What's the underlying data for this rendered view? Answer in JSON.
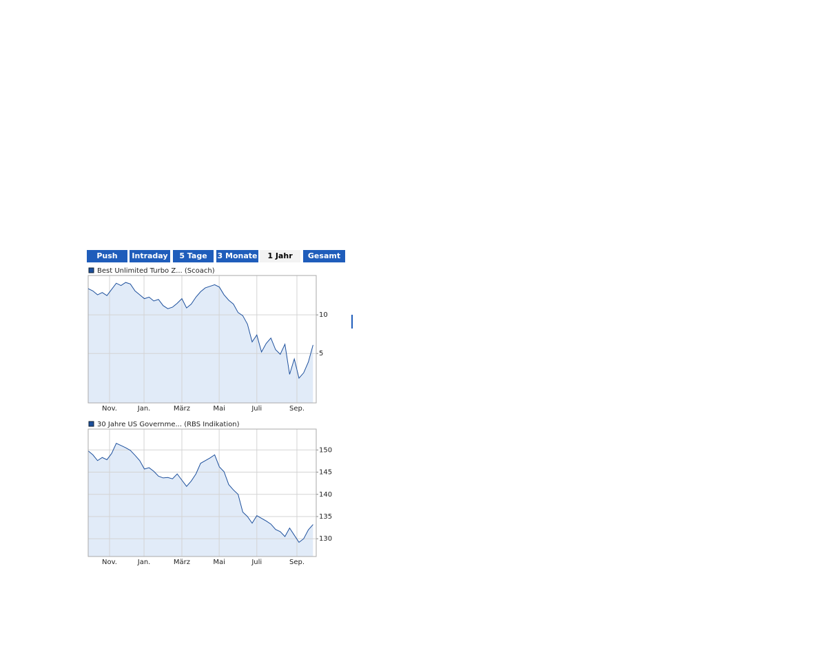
{
  "tabs": [
    "Push",
    "Intraday",
    "5 Tage",
    "3 Monate",
    "1 Jahr",
    "Gesamt"
  ],
  "chart_data": [
    {
      "type": "line",
      "series": [
        {
          "name": "Best Unlimited Turbo Z... (Scoach)",
          "color": "#1c4f9c",
          "fill": "#e1ebf8",
          "values": [
            13.4,
            13.1,
            12.6,
            12.9,
            12.5,
            13.3,
            14.1,
            13.8,
            14.2,
            14.0,
            13.1,
            12.6,
            12.1,
            12.3,
            11.8,
            12.0,
            11.2,
            10.8,
            11.0,
            11.5,
            12.1,
            10.9,
            11.4,
            12.3,
            13.0,
            13.5,
            13.7,
            13.9,
            13.6,
            12.6,
            11.9,
            11.4,
            10.3,
            9.9,
            8.8,
            6.5,
            7.4,
            5.2,
            6.3,
            7.0,
            5.5,
            4.9,
            6.2,
            2.3,
            4.3,
            1.8,
            2.5,
            3.9,
            6.1
          ]
        }
      ],
      "x": [
        0,
        0.25,
        0.5,
        0.75,
        1,
        1.25,
        1.5,
        1.75,
        2,
        2.25,
        2.5,
        2.75,
        3,
        3.25,
        3.5,
        3.75,
        4,
        4.25,
        4.5,
        4.75,
        5,
        5.25,
        5.5,
        5.75,
        6,
        6.25,
        6.5,
        6.75,
        7,
        7.25,
        7.5,
        7.75,
        8,
        8.25,
        8.5,
        8.75,
        9,
        9.25,
        9.5,
        9.75,
        10,
        10.25,
        10.5,
        10.75,
        11,
        11.25,
        11.5,
        11.75,
        12
      ],
      "xlim": [
        0,
        12.17
      ],
      "xticks": [
        {
          "value": 1.14,
          "label": "Nov."
        },
        {
          "value": 2.98,
          "label": "Jan."
        },
        {
          "value": 5.0,
          "label": "März"
        },
        {
          "value": 6.99,
          "label": "Mai"
        },
        {
          "value": 9.0,
          "label": "Juli"
        },
        {
          "value": 11.14,
          "label": "Sep."
        }
      ],
      "ylim": [
        -1.4,
        15.1
      ],
      "yticks": [
        5,
        10
      ],
      "grid": true
    },
    {
      "type": "line",
      "series": [
        {
          "name": "30 Jahre US Governme... (RBS Indikation)",
          "color": "#1c4f9c",
          "fill": "#e1ebf8",
          "values": [
            149.8,
            148.9,
            147.6,
            148.3,
            147.8,
            149.2,
            151.5,
            151.0,
            150.5,
            149.9,
            148.8,
            147.6,
            145.7,
            146.0,
            145.2,
            144.1,
            143.7,
            143.8,
            143.5,
            144.6,
            143.2,
            141.8,
            143.0,
            144.6,
            147.0,
            147.6,
            148.2,
            148.9,
            146.2,
            145.1,
            142.2,
            141.0,
            140.0,
            136.0,
            135.0,
            133.5,
            135.2,
            134.6,
            134.0,
            133.3,
            132.1,
            131.6,
            130.5,
            132.4,
            130.8,
            129.2,
            130.0,
            132.0,
            133.2
          ]
        }
      ],
      "x": [
        0,
        0.25,
        0.5,
        0.75,
        1,
        1.25,
        1.5,
        1.75,
        2,
        2.25,
        2.5,
        2.75,
        3,
        3.25,
        3.5,
        3.75,
        4,
        4.25,
        4.5,
        4.75,
        5,
        5.25,
        5.5,
        5.75,
        6,
        6.25,
        6.5,
        6.75,
        7,
        7.25,
        7.5,
        7.75,
        8,
        8.25,
        8.5,
        8.75,
        9,
        9.25,
        9.5,
        9.75,
        10,
        10.25,
        10.5,
        10.75,
        11,
        11.25,
        11.5,
        11.75,
        12
      ],
      "xlim": [
        0,
        12.17
      ],
      "xticks": [
        {
          "value": 1.14,
          "label": "Nov."
        },
        {
          "value": 2.98,
          "label": "Jan."
        },
        {
          "value": 5.0,
          "label": "März"
        },
        {
          "value": 6.99,
          "label": "Mai"
        },
        {
          "value": 9.0,
          "label": "Juli"
        },
        {
          "value": 11.14,
          "label": "Sep."
        }
      ],
      "ylim": [
        126,
        154.7
      ],
      "yticks": [
        130,
        135,
        140,
        145,
        150
      ],
      "grid": true
    }
  ]
}
